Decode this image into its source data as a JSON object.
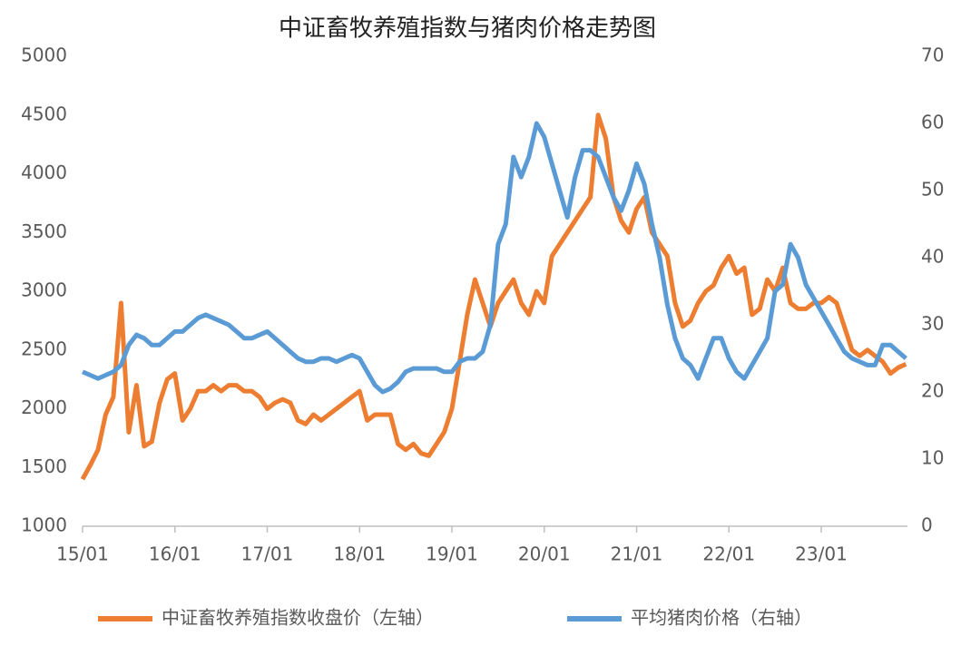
{
  "chart_data": {
    "type": "line",
    "title": "中证畜牧养殖指数与猪肉价格走势图",
    "categories": [
      "15/01",
      null,
      null,
      null,
      null,
      null,
      null,
      null,
      null,
      null,
      null,
      null,
      "16/01",
      null,
      null,
      null,
      null,
      null,
      null,
      null,
      null,
      null,
      null,
      null,
      "17/01",
      null,
      null,
      null,
      null,
      null,
      null,
      null,
      null,
      null,
      null,
      null,
      "18/01",
      null,
      null,
      null,
      null,
      null,
      null,
      null,
      null,
      null,
      null,
      null,
      "19/01",
      null,
      null,
      null,
      null,
      null,
      null,
      null,
      null,
      null,
      null,
      null,
      "20/01",
      null,
      null,
      null,
      null,
      null,
      null,
      null,
      null,
      null,
      null,
      null,
      "21/01",
      null,
      null,
      null,
      null,
      null,
      null,
      null,
      null,
      null,
      null,
      null,
      "22/01",
      null,
      null,
      null,
      null,
      null,
      null,
      null,
      null,
      null,
      null,
      null,
      "23/01",
      null,
      null,
      null,
      null,
      null,
      null,
      null,
      null,
      null,
      null,
      null
    ],
    "series": [
      {
        "name": "中证畜牧养殖指数收盘价（左轴）",
        "color": "#ed7d31",
        "axis": "y",
        "values": [
          1400,
          1520,
          1650,
          1950,
          2100,
          2900,
          1800,
          2200,
          1680,
          1720,
          2050,
          2250,
          2300,
          1900,
          2000,
          2150,
          2150,
          2200,
          2150,
          2200,
          2200,
          2150,
          2150,
          2100,
          2000,
          2050,
          2080,
          2050,
          1900,
          1870,
          1950,
          1900,
          1950,
          2000,
          2050,
          2100,
          2150,
          1900,
          1950,
          1950,
          1950,
          1700,
          1650,
          1700,
          1620,
          1600,
          1700,
          1800,
          2000,
          2400,
          2800,
          3100,
          2900,
          2700,
          2900,
          3000,
          3100,
          2900,
          2800,
          3000,
          2900,
          3300,
          3400,
          3500,
          3600,
          3700,
          3800,
          4500,
          4300,
          3800,
          3600,
          3500,
          3700,
          3800,
          3500,
          3400,
          3300,
          2900,
          2700,
          2750,
          2900,
          3000,
          3050,
          3200,
          3300,
          3150,
          3200,
          2800,
          2850,
          3100,
          3000,
          3200,
          2900,
          2850,
          2850,
          2900,
          2900,
          2950,
          2900,
          2700,
          2500,
          2450,
          2500,
          2450,
          2400,
          2300,
          2350,
          2380
        ]
      },
      {
        "name": "平均猪肉价格（右轴）",
        "color": "#5b9bd5",
        "axis": "y2",
        "values": [
          23,
          22.5,
          22,
          22.5,
          23,
          24,
          27,
          28.5,
          28,
          27,
          27,
          28,
          29,
          29,
          30,
          31,
          31.5,
          31,
          30.5,
          30,
          29,
          28,
          28,
          28.5,
          29,
          28,
          27,
          26,
          25,
          24.5,
          24.5,
          25,
          25,
          24.5,
          25,
          25.5,
          25,
          23,
          21,
          20,
          20.5,
          21.5,
          23,
          23.5,
          23.5,
          23.5,
          23.5,
          23,
          23,
          24.5,
          25,
          25,
          26,
          30,
          42,
          45,
          55,
          52,
          55,
          60,
          58,
          54,
          50,
          46,
          52,
          56,
          56,
          55,
          52,
          49,
          47,
          50,
          54,
          51,
          45,
          40,
          33,
          28,
          25,
          24,
          22,
          25,
          28,
          28,
          25,
          23,
          22,
          24,
          26,
          28,
          35,
          36,
          42,
          40,
          36,
          34,
          32,
          30,
          28,
          26,
          25,
          24.5,
          24,
          24,
          27,
          27,
          26,
          25
        ]
      }
    ],
    "ylim": [
      1000,
      5000
    ],
    "yticks": [
      1000,
      1500,
      2000,
      2500,
      3000,
      3500,
      4000,
      4500,
      5000
    ],
    "y2lim": [
      0,
      70
    ],
    "y2ticks": [
      0,
      10,
      20,
      30,
      40,
      50,
      60,
      70
    ],
    "legend": "bottom"
  }
}
